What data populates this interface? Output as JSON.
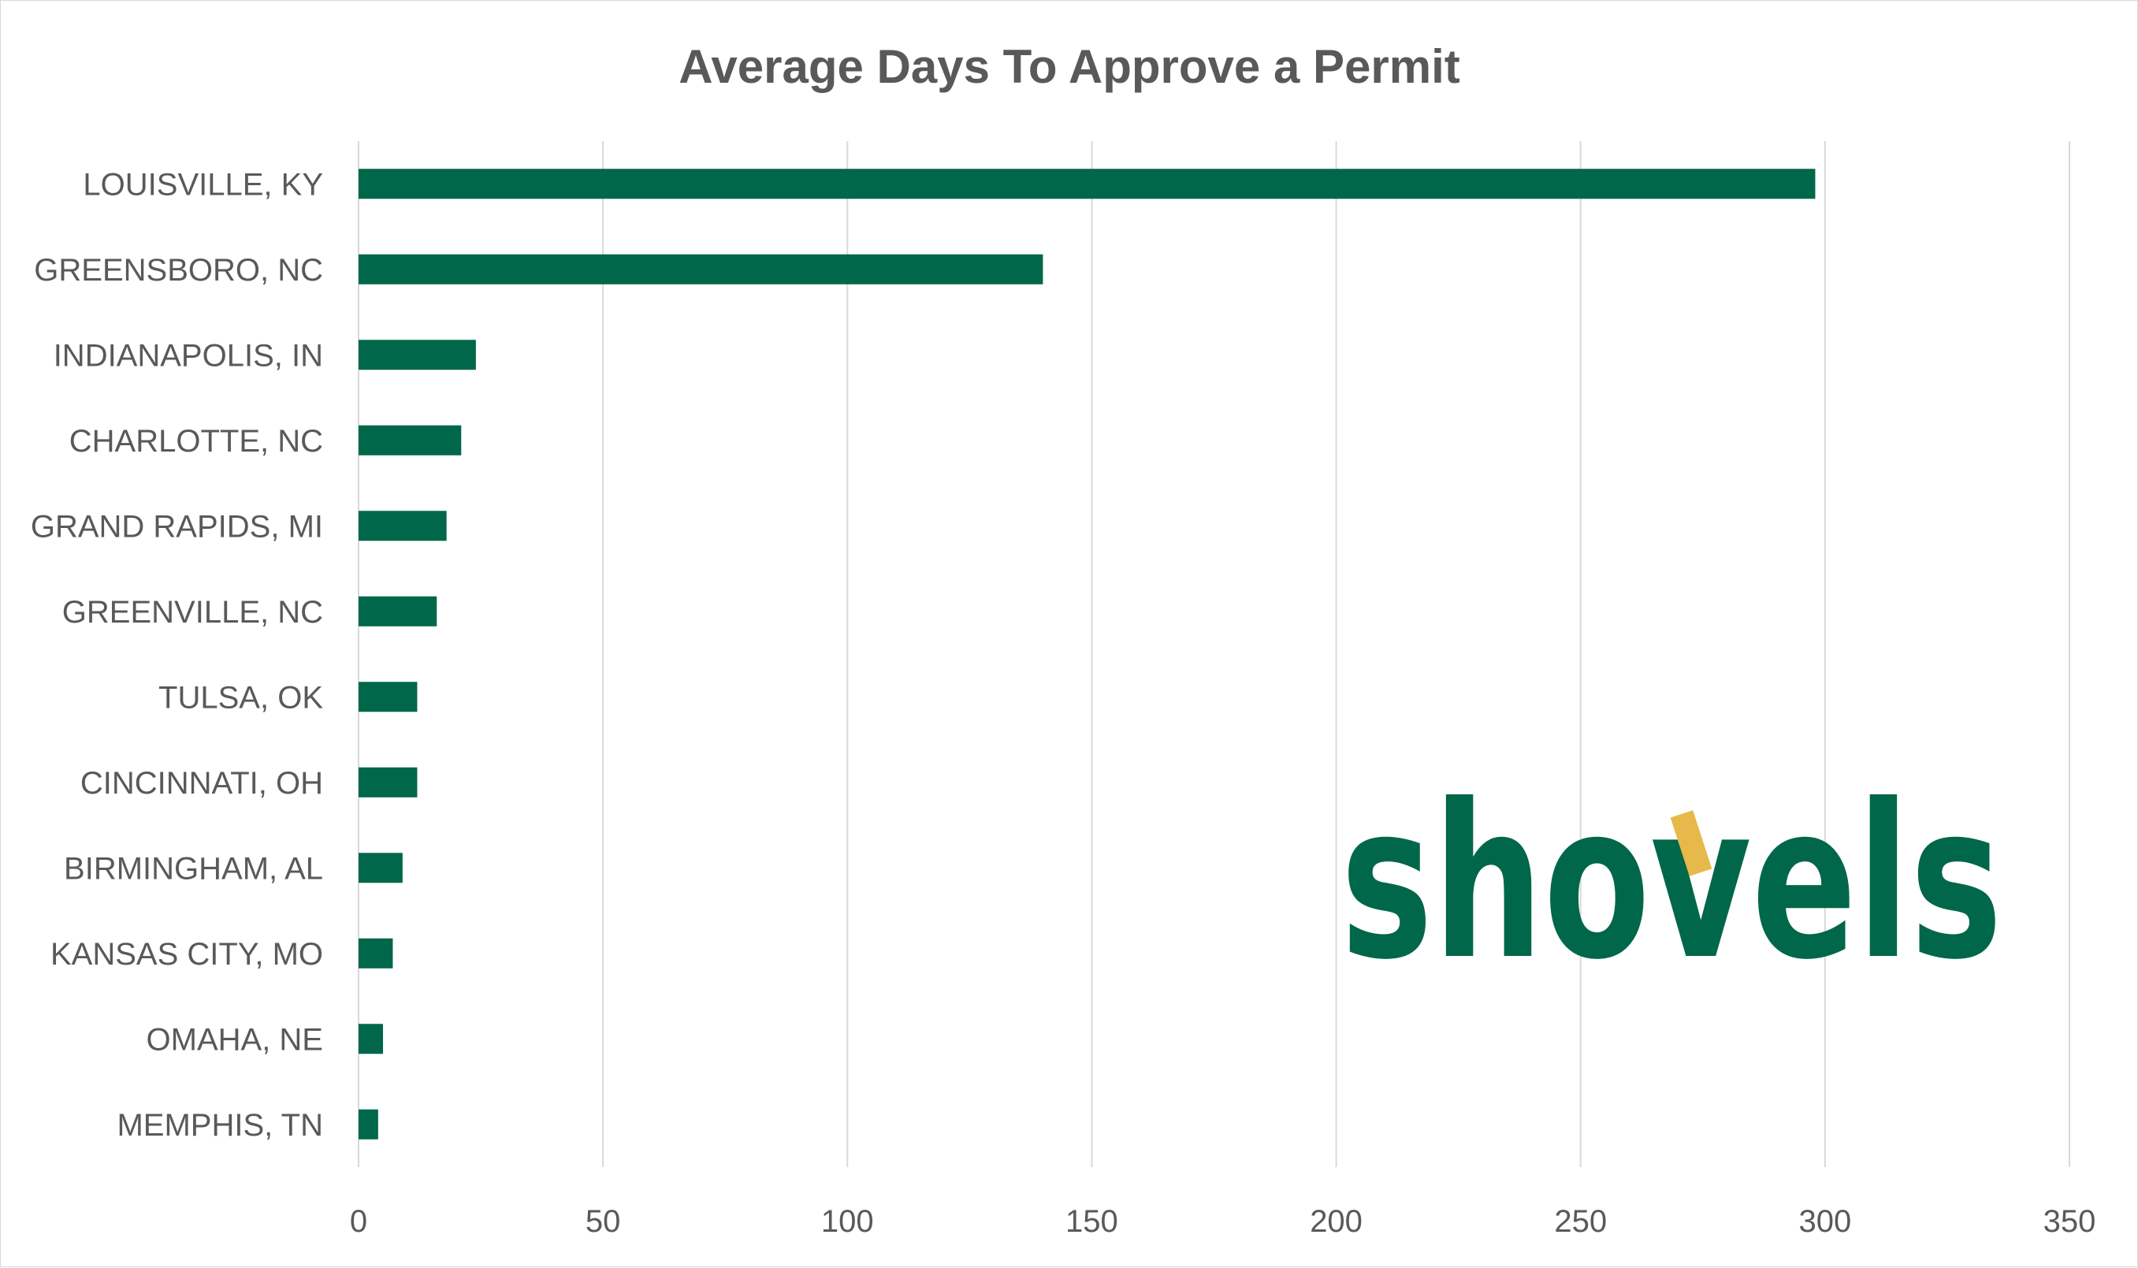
{
  "chart_data": {
    "type": "bar",
    "orientation": "horizontal",
    "title": "Average Days To Approve a Permit",
    "xlabel": "",
    "ylabel": "",
    "categories": [
      "LOUISVILLE, KY",
      "GREENSBORO, NC",
      "INDIANAPOLIS, IN",
      "CHARLOTTE, NC",
      "GRAND RAPIDS, MI",
      "GREENVILLE, NC",
      "TULSA, OK",
      "CINCINNATI, OH",
      "BIRMINGHAM, AL",
      "KANSAS CITY, MO",
      "OMAHA, NE",
      "MEMPHIS, TN"
    ],
    "values": [
      298,
      140,
      24,
      21,
      18,
      16,
      12,
      12,
      9,
      7,
      5,
      4
    ],
    "xlim": [
      0,
      350
    ],
    "xticks": [
      "0",
      "50",
      "100",
      "150",
      "200",
      "250",
      "300",
      "350"
    ],
    "grid": "vertical",
    "legend": "none",
    "bar_color": "#00674a",
    "grid_color": "#d9d9d9"
  },
  "logo": {
    "text": "shovels",
    "color": "#00674a",
    "accent_color": "#e6b94a"
  }
}
